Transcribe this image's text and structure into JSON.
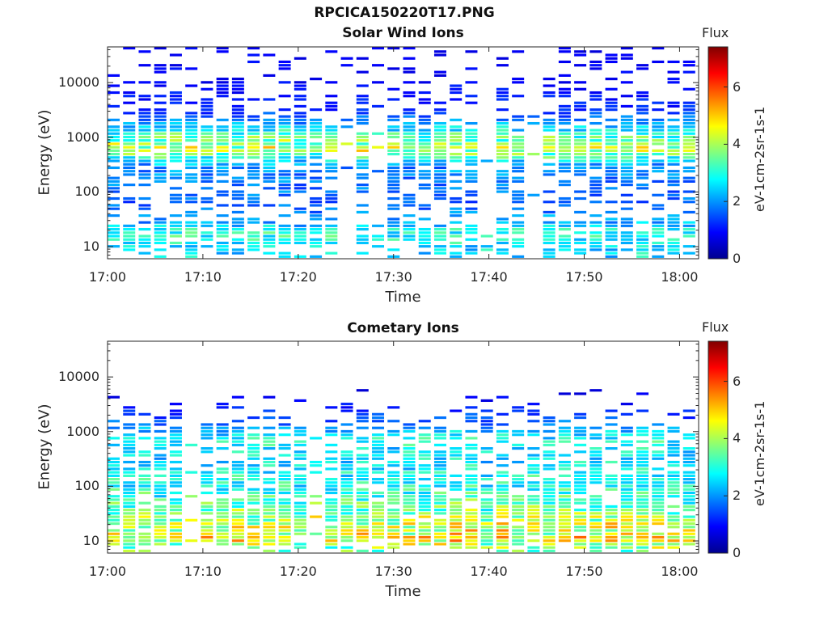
{
  "figure_title": "RPCICA150220T17.PNG",
  "colors": {
    "colormap": [
      "#00008f",
      "#0000ff",
      "#0080ff",
      "#00ffff",
      "#80ff80",
      "#ffff00",
      "#ff8000",
      "#ff0000",
      "#800000"
    ]
  },
  "chart_data": [
    {
      "type": "heatmap",
      "title": "Solar Wind Ions",
      "xlabel": "Time",
      "ylabel": "Energy (eV)",
      "yscale": "log",
      "ylim": [
        6,
        45000
      ],
      "xlim": [
        "17:00",
        "18:02"
      ],
      "x_ticks": [
        "17:00",
        "17:10",
        "17:20",
        "17:30",
        "17:40",
        "17:50",
        "18:00"
      ],
      "y_ticks": [
        "10",
        "100",
        "1000",
        "10000"
      ],
      "colorbar": {
        "title": "Flux",
        "label": "eV-1cm-2sr-1s-1",
        "range": [
          0,
          7.4
        ],
        "ticks": [
          "0",
          "2",
          "4",
          "6"
        ]
      },
      "grid": false,
      "profile": [
        [
          10,
          2.6
        ],
        [
          20,
          3.0
        ],
        [
          25,
          2.2
        ],
        [
          60,
          1.6
        ],
        [
          150,
          1.8
        ],
        [
          300,
          2.0
        ],
        [
          600,
          4.2
        ],
        [
          1000,
          3.3
        ],
        [
          1500,
          2.5
        ],
        [
          3000,
          1.2
        ],
        [
          10000,
          0.9
        ],
        [
          40000,
          0.8
        ]
      ],
      "coverage": [
        [
          6,
          0.35
        ],
        [
          10,
          0.75
        ],
        [
          25,
          0.85
        ],
        [
          30,
          0.4
        ],
        [
          60,
          0.45
        ],
        [
          100,
          0.55
        ],
        [
          200,
          0.7
        ],
        [
          400,
          0.9
        ],
        [
          800,
          0.98
        ],
        [
          1500,
          0.9
        ],
        [
          3000,
          0.45
        ],
        [
          10000,
          0.28
        ],
        [
          40000,
          0.22
        ]
      ]
    },
    {
      "type": "heatmap",
      "title": "Cometary Ions",
      "xlabel": "Time",
      "ylabel": "Energy (eV)",
      "yscale": "log",
      "ylim": [
        6,
        45000
      ],
      "xlim": [
        "17:00",
        "18:02"
      ],
      "x_ticks": [
        "17:00",
        "17:10",
        "17:20",
        "17:30",
        "17:40",
        "17:50",
        "18:00"
      ],
      "y_ticks": [
        "10",
        "100",
        "1000",
        "10000"
      ],
      "colorbar": {
        "title": "Flux",
        "label": "eV-1cm-2sr-1s-1",
        "range": [
          0,
          7.4
        ],
        "ticks": [
          "0",
          "2",
          "4",
          "6"
        ]
      },
      "grid": false,
      "profile": [
        [
          7,
          3.6
        ],
        [
          10,
          4.5
        ],
        [
          20,
          4.2
        ],
        [
          40,
          3.4
        ],
        [
          100,
          2.9
        ],
        [
          300,
          2.6
        ],
        [
          700,
          2.9
        ],
        [
          1500,
          1.6
        ],
        [
          3000,
          1.0
        ],
        [
          5000,
          0.7
        ]
      ],
      "coverage": [
        [
          6,
          0.25
        ],
        [
          10,
          0.95
        ],
        [
          30,
          0.95
        ],
        [
          100,
          0.8
        ],
        [
          300,
          0.65
        ],
        [
          600,
          0.55
        ],
        [
          900,
          0.8
        ],
        [
          1500,
          0.4
        ],
        [
          3000,
          0.15
        ],
        [
          5000,
          0.05
        ],
        [
          8000,
          0.0
        ]
      ]
    }
  ]
}
